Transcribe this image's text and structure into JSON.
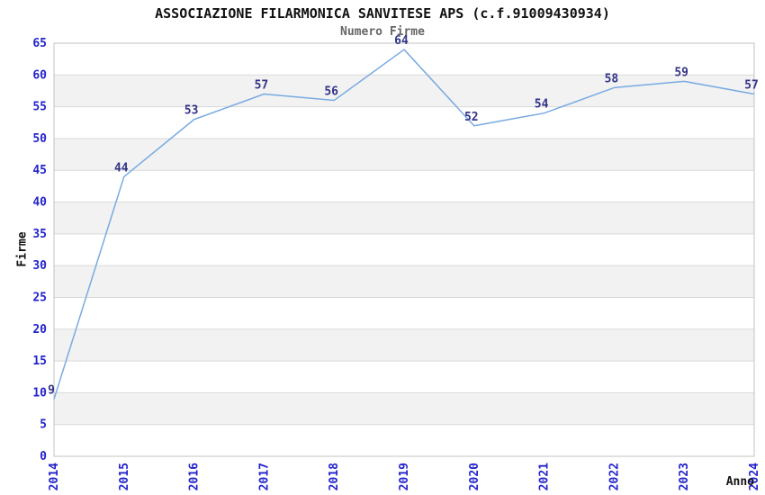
{
  "chart_data": {
    "type": "line",
    "title": "ASSOCIAZIONE FILARMONICA SANVITESE APS (c.f.91009430934)",
    "subtitle": "Numero Firme",
    "xlabel": "Anno",
    "ylabel": "Firme",
    "categories": [
      "2014",
      "2015",
      "2016",
      "2017",
      "2018",
      "2019",
      "2020",
      "2021",
      "2022",
      "2023",
      "2024"
    ],
    "values": [
      9,
      44,
      53,
      57,
      56,
      64,
      52,
      54,
      58,
      59,
      57
    ],
    "ylim": [
      0,
      65
    ],
    "ytick_step": 5,
    "grid": true,
    "legend_position": "none",
    "banded_background": true,
    "colors": {
      "line": "#79aae2",
      "tick_label": "#2323cc",
      "data_label": "#333388",
      "band": "#f2f2f2",
      "gridline": "#d9d9d9",
      "plot_border": "#c3c3c3",
      "title": "#111111",
      "subtitle": "#666666",
      "background": "#ffffff"
    }
  }
}
